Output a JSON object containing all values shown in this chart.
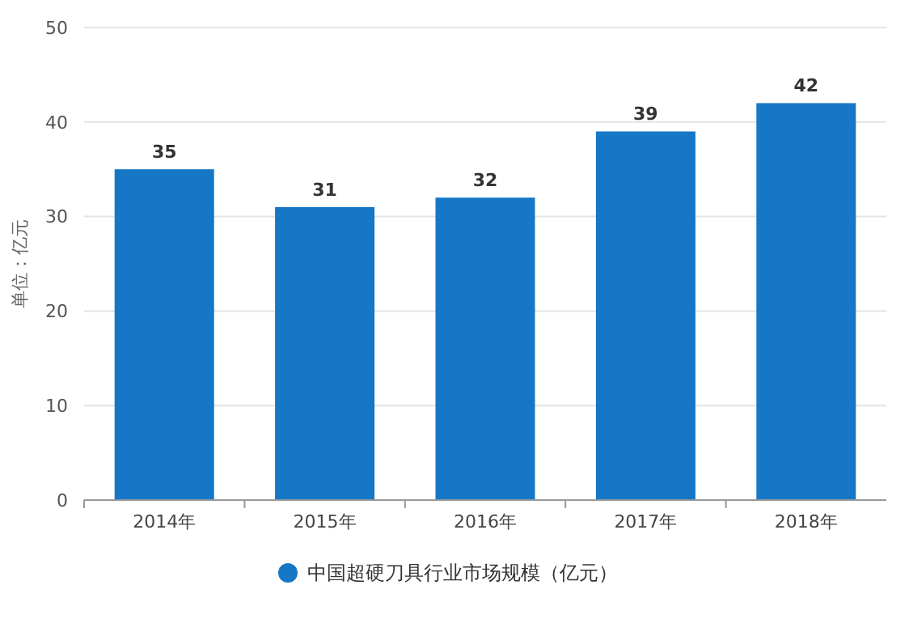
{
  "chart_data": {
    "type": "bar",
    "ylabel": "单位：亿元",
    "categories": [
      "2014年",
      "2015年",
      "2016年",
      "2017年",
      "2018年"
    ],
    "series": [
      {
        "name": "中国超硬刀具行业市场规模（亿元）",
        "color": "#1677c7",
        "values": [
          35,
          31,
          32,
          39,
          42
        ]
      }
    ],
    "ylim": [
      0,
      50
    ],
    "yticks": [
      0,
      10,
      20,
      30,
      40,
      50
    ],
    "grid": "y",
    "legend": "bottom",
    "data_labels": true
  }
}
